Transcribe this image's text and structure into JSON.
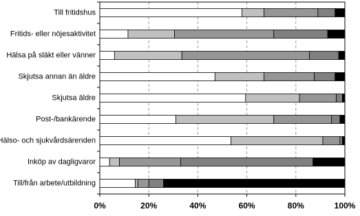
{
  "chart_data": {
    "type": "stacked-bar-horizontal",
    "categories": [
      "Till fritidshus",
      "Fritids- eller nöjesaktivitet",
      "Hälsa på släkt eller vänner",
      "Skjutsa annan än äldre",
      "Skjutsa äldre",
      "Post-/bankärende",
      "Hälso- och sjukvårdsärenden",
      "Inköp av dagligvaror",
      "Till/från arbete/utbildning"
    ],
    "series": [
      {
        "color": "#ffffff",
        "values": [
          58,
          11.5,
          6,
          47,
          59.5,
          31,
          53.5,
          4,
          14.5
        ]
      },
      {
        "color": "#c0c0c0",
        "values": [
          9,
          19,
          27.5,
          20,
          22,
          40,
          37.5,
          4,
          1
        ]
      },
      {
        "color": "#969696",
        "values": [
          22,
          40.5,
          52,
          20.5,
          15,
          23.5,
          7,
          25,
          4.5
        ]
      },
      {
        "color": "#808080",
        "values": [
          7,
          22,
          12,
          8.5,
          2.5,
          3.5,
          1,
          54,
          6
        ]
      },
      {
        "color": "#000000",
        "values": [
          4,
          7,
          2.5,
          4,
          1,
          2,
          1,
          13,
          74
        ]
      }
    ],
    "xlim": [
      0,
      100
    ],
    "xticks": [
      {
        "value": 0,
        "label": "0%"
      },
      {
        "value": 20,
        "label": "20%"
      },
      {
        "value": 40,
        "label": "40%"
      },
      {
        "value": 60,
        "label": "60%"
      },
      {
        "value": 80,
        "label": "80%"
      },
      {
        "value": 100,
        "label": "100%"
      }
    ],
    "grid": true
  }
}
